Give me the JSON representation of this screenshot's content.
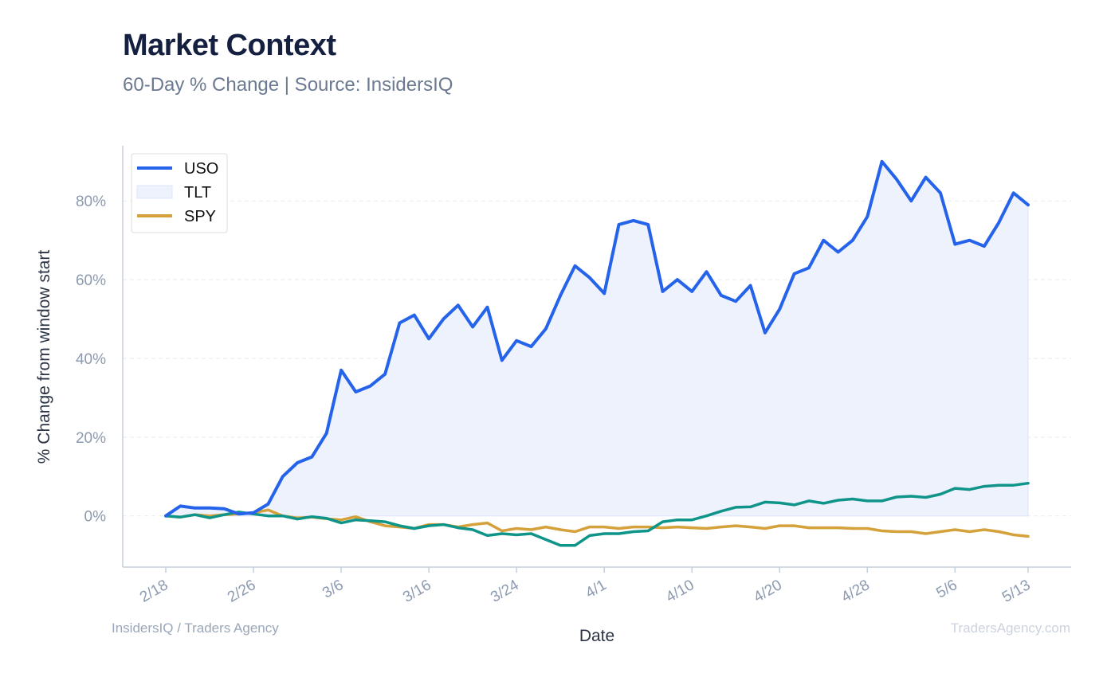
{
  "title": "Market Context",
  "subtitle": "60-Day % Change | Source: InsidersIQ",
  "footer": {
    "left": "InsidersIQ / Traders Agency",
    "right": "TradersAgency.com"
  },
  "chart_data": {
    "type": "line",
    "xlabel": "Date",
    "ylabel": "% Change from window start",
    "ylim": [
      -13,
      94
    ],
    "yticks": [
      0,
      20,
      40,
      60,
      80
    ],
    "ytick_labels": [
      "0%",
      "20%",
      "40%",
      "60%",
      "80%"
    ],
    "xticks": [
      0,
      6,
      12,
      18,
      24,
      30,
      36,
      42,
      48,
      54,
      59
    ],
    "xtick_labels": [
      "2/18",
      "2/26",
      "3/6",
      "3/16",
      "3/24",
      "4/1",
      "4/10",
      "4/20",
      "4/28",
      "5/6",
      "5/13"
    ],
    "grid": "horizontal dashed",
    "legend_position": "top-left",
    "x": [
      0,
      1,
      2,
      3,
      4,
      5,
      6,
      7,
      8,
      9,
      10,
      11,
      12,
      13,
      14,
      15,
      16,
      17,
      18,
      19,
      20,
      21,
      22,
      23,
      24,
      25,
      26,
      27,
      28,
      29,
      30,
      31,
      32,
      33,
      34,
      35,
      36,
      37,
      38,
      39,
      40,
      41,
      42,
      43,
      44,
      45,
      46,
      47,
      48,
      49,
      50,
      51,
      52,
      53,
      54,
      55,
      56,
      57,
      58,
      59
    ],
    "series": [
      {
        "name": "USO",
        "color": "#2563eb",
        "fill": true,
        "values": [
          0,
          2.5,
          2,
          2,
          1.8,
          0.5,
          0.8,
          3,
          10,
          13.5,
          15,
          21,
          37,
          31.5,
          33,
          36,
          49,
          51,
          45,
          50,
          53.5,
          48,
          53,
          39.5,
          44.5,
          43,
          47.5,
          56,
          63.5,
          60.5,
          56.5,
          74,
          75,
          74,
          57,
          60,
          57,
          62,
          56,
          54.5,
          58.5,
          46.5,
          52.5,
          61.5,
          63,
          70,
          67,
          70,
          76,
          90,
          85.5,
          80,
          86,
          82,
          69,
          70,
          68.5,
          74.5,
          82,
          79
        ]
      },
      {
        "name": "TLT",
        "color": "#dbe5fb",
        "legend_type": "fill",
        "values": [
          0,
          2.5,
          2,
          2,
          1.8,
          0.5,
          0.8,
          3,
          10,
          13.5,
          15,
          21,
          37,
          31.5,
          33,
          36,
          49,
          51,
          45,
          50,
          53.5,
          48,
          53,
          39.5,
          44.5,
          43,
          47.5,
          56,
          63.5,
          60.5,
          56.5,
          74,
          75,
          74,
          57,
          60,
          57,
          62,
          56,
          54.5,
          58.5,
          46.5,
          52.5,
          61.5,
          63,
          70,
          67,
          70,
          76,
          90,
          85.5,
          80,
          86,
          82,
          69,
          70,
          68.5,
          74.5,
          82,
          79
        ]
      },
      {
        "name": "SPY",
        "color": "#d4a13a",
        "values": [
          0,
          -0.3,
          0.3,
          0,
          0.3,
          0.5,
          0.8,
          1.5,
          0,
          -0.5,
          -0.3,
          -0.7,
          -1,
          -0.2,
          -1.5,
          -2.5,
          -2.8,
          -3.2,
          -2.2,
          -2.2,
          -2.8,
          -2.2,
          -1.8,
          -3.8,
          -3.2,
          -3.5,
          -2.8,
          -3.5,
          -4,
          -2.8,
          -2.8,
          -3.2,
          -2.8,
          -2.8,
          -3,
          -2.8,
          -3,
          -3.2,
          -2.8,
          -2.5,
          -2.8,
          -3.2,
          -2.5,
          -2.5,
          -3,
          -3,
          -3,
          -3.2,
          -3.2,
          -3.8,
          -4,
          -4,
          -4.5,
          -4,
          -3.5,
          -4,
          -3.5,
          -4,
          -4.8,
          -5.2
        ]
      },
      {
        "name": "",
        "color": "#0e9488",
        "values": [
          0,
          -0.3,
          0.3,
          -0.5,
          0.3,
          1,
          0.5,
          0,
          0,
          -0.8,
          -0.2,
          -0.6,
          -1.8,
          -1,
          -1.2,
          -1.5,
          -2.5,
          -3.2,
          -2.5,
          -2.2,
          -3,
          -3.5,
          -5,
          -4.5,
          -4.8,
          -4.5,
          -6,
          -7.5,
          -7.5,
          -5,
          -4.5,
          -4.5,
          -4,
          -3.8,
          -1.5,
          -1,
          -1,
          0,
          1.2,
          2.2,
          2.3,
          3.5,
          3.3,
          2.8,
          3.8,
          3.2,
          4,
          4.3,
          3.8,
          3.8,
          4.8,
          5,
          4.7,
          5.5,
          7,
          6.7,
          7.5,
          7.8,
          7.8,
          8.3
        ]
      }
    ]
  }
}
